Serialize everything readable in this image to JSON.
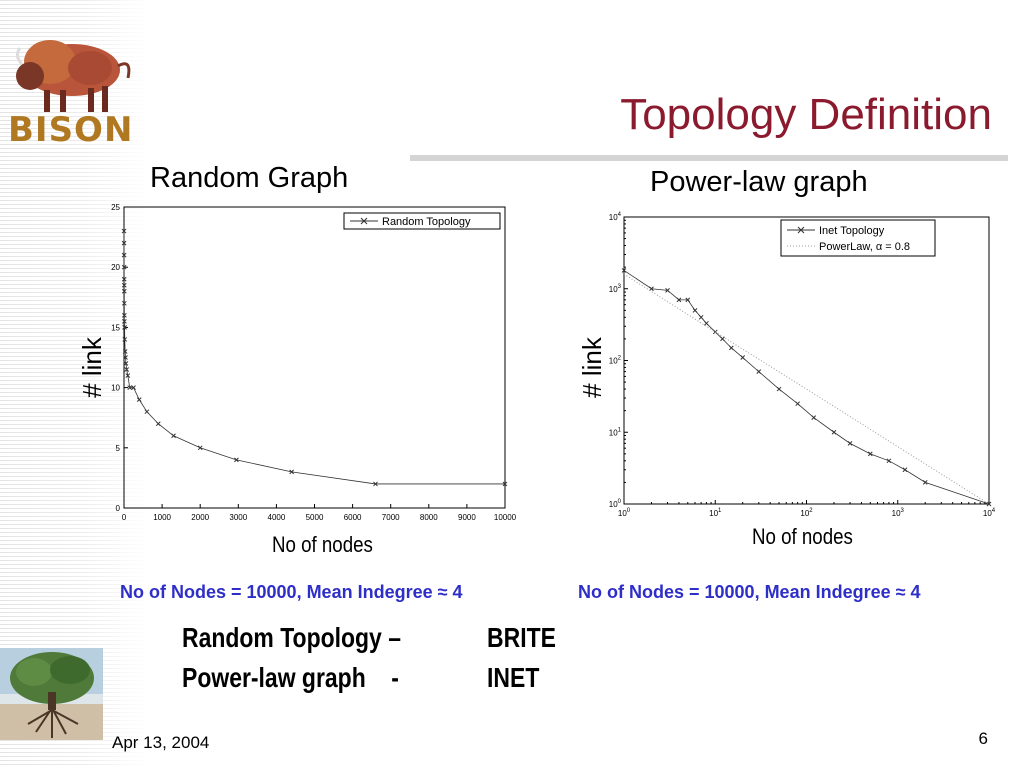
{
  "header": {
    "logo_text": "BISON",
    "title": "Topology Definition"
  },
  "left": {
    "subtitle": "Random Graph",
    "y_label": "# link",
    "x_label": "No of nodes",
    "note": "No of Nodes = 10000, Mean Indegree ≈ 4"
  },
  "right": {
    "subtitle": "Power-law graph",
    "y_label": "# link",
    "x_label": "No of nodes",
    "note": "No of Nodes = 10000, Mean Indegree ≈ 4"
  },
  "assignments": [
    {
      "graph": "Random Topology –",
      "tool": "BRITE"
    },
    {
      "graph": "Power-law graph    -",
      "tool": "INET"
    }
  ],
  "footer": {
    "date": "Apr 13, 2004",
    "page": "6"
  },
  "chart_data": [
    {
      "type": "line",
      "xlim": [
        0,
        10000
      ],
      "ylim": [
        0,
        25
      ],
      "x_ticks": [
        "0",
        "1000",
        "2000",
        "3000",
        "4000",
        "5000",
        "6000",
        "7000",
        "8000",
        "9000",
        "10000"
      ],
      "y_ticks": [
        "0",
        "5",
        "10",
        "15",
        "20",
        "25"
      ],
      "legend_position": "top-right",
      "series": [
        {
          "name": "Random Topology",
          "color": "#333333",
          "marker": "x",
          "x": [
            1,
            2,
            3,
            4,
            5,
            6,
            7,
            8,
            9,
            10,
            15,
            20,
            30,
            40,
            50,
            70,
            100,
            150,
            250,
            400,
            600,
            900,
            1300,
            2000,
            2950,
            4400,
            6600,
            10000
          ],
          "y": [
            23,
            22,
            21,
            20,
            19,
            18.5,
            18,
            17,
            16,
            15.5,
            15,
            14,
            13,
            12.5,
            12,
            11.5,
            11,
            10,
            10,
            9,
            8,
            7,
            6,
            5,
            4,
            3,
            2,
            2
          ]
        }
      ]
    },
    {
      "type": "line",
      "x_scale": "log",
      "y_scale": "log",
      "xlim": [
        1,
        10000
      ],
      "ylim": [
        1,
        10000
      ],
      "x_ticks": [
        "10^0",
        "10^1",
        "10^2",
        "10^3",
        "10^4"
      ],
      "y_ticks": [
        "10^0",
        "10^1",
        "10^2",
        "10^3",
        "10^4"
      ],
      "legend_position": "top-right",
      "series": [
        {
          "name": "Inet Topology",
          "color": "#333333",
          "marker": "x",
          "x": [
            1,
            2,
            3,
            4,
            5,
            6,
            7,
            8,
            10,
            12,
            15,
            20,
            30,
            50,
            80,
            120,
            200,
            300,
            500,
            800,
            1200,
            2000,
            10000
          ],
          "y": [
            1800,
            1000,
            950,
            700,
            700,
            500,
            400,
            330,
            250,
            200,
            150,
            110,
            70,
            40,
            25,
            16,
            10,
            7,
            5,
            4,
            3,
            2,
            1
          ]
        },
        {
          "name": "PowerLaw, α = 0.8",
          "color": "#9a9a9a",
          "marker": "",
          "style": "dotted",
          "x": [
            1,
            10,
            100,
            1000,
            10000
          ],
          "y": [
            1600,
            250,
            40,
            6.3,
            1
          ]
        }
      ]
    }
  ]
}
